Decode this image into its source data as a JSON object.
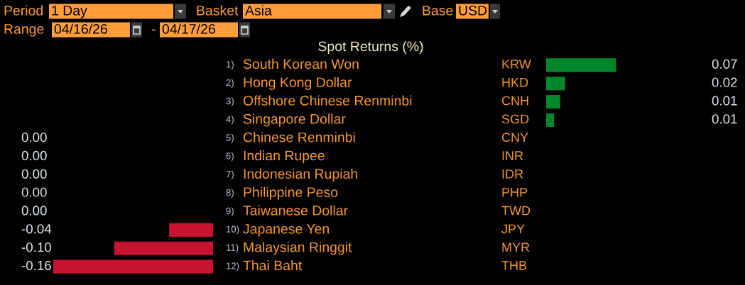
{
  "chart_data": [
    {
      "type": "bar",
      "orientation": "horizontal",
      "title": "Spot Returns (%)",
      "color": "#c6132f",
      "categories": [
        "1) South Korean Won",
        "2) Hong Kong Dollar",
        "3) Offshore Chinese Renminbi",
        "4) Singapore Dollar",
        "5) Chinese Renminbi",
        "6) Indian Rupee",
        "7) Indonesian Rupiah",
        "8) Philippine Peso",
        "9) Taiwanese Dollar",
        "10) Japanese Yen",
        "11) Malaysian Ringgit",
        "12) Thai Baht"
      ],
      "values": [
        null,
        null,
        null,
        null,
        0,
        0,
        0,
        0,
        0,
        -0.044,
        -0.099,
        -0.16
      ],
      "value_labels": [
        null,
        null,
        null,
        null,
        "0.00",
        "0.00",
        "0.00",
        "0.00",
        "0.00",
        "-0.04",
        "-0.10",
        "-0.16"
      ],
      "annotations": [
        "Period",
        "1 Day",
        "Basket",
        "Asia",
        "Base",
        "USD",
        "Range",
        "04/16/26",
        "-",
        "04/17/26"
      ]
    },
    {
      "type": "bar",
      "orientation": "horizontal",
      "color": "#02862c",
      "categories": [
        "KRW",
        "HKD",
        "CNH",
        "SGD",
        "CNY",
        "INR",
        "IDR",
        "PHP",
        "TWD",
        "JPY",
        "MYR",
        "THB"
      ],
      "values": [
        0.07,
        0.019,
        0.014,
        0.008,
        null,
        null,
        null,
        null,
        null,
        null,
        null,
        null
      ],
      "value_labels": [
        "0.07",
        "0.02",
        "0.01",
        "0.01",
        null,
        null,
        null,
        null,
        null,
        null,
        null,
        null
      ]
    }
  ]
}
